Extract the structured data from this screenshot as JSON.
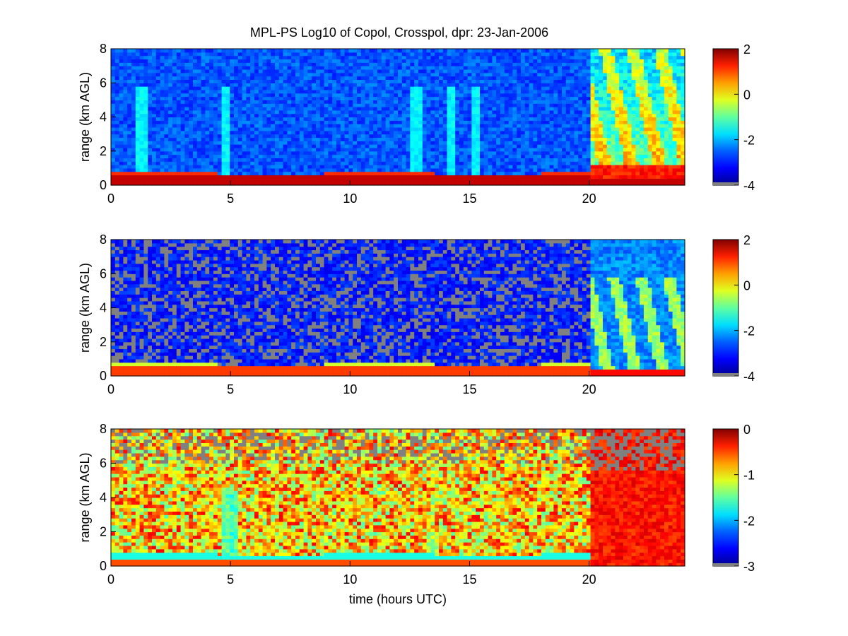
{
  "figure": {
    "title": "MPL-PS Log10 of Copol, Crosspol, dpr: 23-Jan-2006",
    "xlabel": "time (hours UTC)"
  },
  "colors": {
    "jet": [
      "#00008F",
      "#0000FF",
      "#0080FF",
      "#00FFFF",
      "#80FF80",
      "#FFFF00",
      "#FF8000",
      "#FF0000",
      "#800000"
    ],
    "missing": "#808080"
  },
  "chart_data": [
    {
      "type": "heatmap",
      "panel": "copol",
      "title": "MPL-PS Log10 of Copol, Crosspol, dpr: 23-Jan-2006",
      "xlabel": "",
      "ylabel": "range (km AGL)",
      "xlim": [
        0,
        24
      ],
      "ylim": [
        0,
        8
      ],
      "xticks": [
        0,
        5,
        10,
        15,
        20
      ],
      "yticks": [
        0,
        2,
        4,
        6,
        8
      ],
      "colorbar": {
        "range": [
          -4,
          2
        ],
        "ticks": [
          -4,
          -2,
          0,
          2
        ],
        "colormap": "jet"
      },
      "grid": false
    },
    {
      "type": "heatmap",
      "panel": "crosspol",
      "xlabel": "",
      "ylabel": "range (km AGL)",
      "xlim": [
        0,
        24
      ],
      "ylim": [
        0,
        8
      ],
      "xticks": [
        0,
        5,
        10,
        15,
        20
      ],
      "yticks": [
        0,
        2,
        4,
        6,
        8
      ],
      "colorbar": {
        "range": [
          -4,
          2
        ],
        "ticks": [
          -4,
          -2,
          0,
          2
        ],
        "colormap": "jet"
      },
      "grid": false
    },
    {
      "type": "heatmap",
      "panel": "dpr",
      "xlabel": "time (hours UTC)",
      "ylabel": "range (km AGL)",
      "xlim": [
        0,
        24
      ],
      "ylim": [
        0,
        8
      ],
      "xticks": [
        0,
        5,
        10,
        15,
        20
      ],
      "yticks": [
        0,
        2,
        4,
        6,
        8
      ],
      "colorbar": {
        "range": [
          -3,
          0
        ],
        "ticks": [
          -3,
          -2,
          -1,
          0
        ],
        "colormap": "jet"
      },
      "grid": false
    }
  ]
}
